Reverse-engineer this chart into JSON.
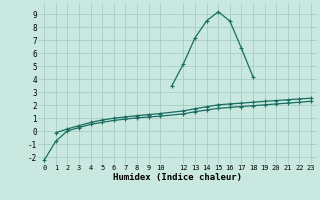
{
  "xlabel": "Humidex (Indice chaleur)",
  "bg_color": "#c8e8e0",
  "grid_color": "#a8ccc4",
  "line_color": "#1a6e60",
  "xlim": [
    -0.5,
    23.5
  ],
  "ylim": [
    -2.5,
    9.8
  ],
  "xticks": [
    0,
    1,
    2,
    3,
    4,
    5,
    6,
    7,
    8,
    9,
    10,
    12,
    13,
    14,
    15,
    16,
    17,
    18,
    19,
    20,
    21,
    22,
    23
  ],
  "yticks": [
    -2,
    -1,
    0,
    1,
    2,
    3,
    4,
    5,
    6,
    7,
    8,
    9
  ],
  "line1_x": [
    0,
    1,
    2,
    3,
    4,
    5,
    6,
    7,
    8,
    9,
    10,
    12,
    13,
    14,
    15,
    16,
    17,
    18,
    19,
    20,
    21,
    22,
    23
  ],
  "line1_y": [
    -2.2,
    -0.75,
    0.05,
    0.3,
    0.55,
    0.7,
    0.85,
    0.95,
    1.05,
    1.12,
    1.18,
    1.35,
    1.52,
    1.65,
    1.78,
    1.85,
    1.92,
    1.98,
    2.05,
    2.12,
    2.18,
    2.25,
    2.32
  ],
  "line2_x": [
    1,
    2,
    3,
    4,
    5,
    6,
    7,
    8,
    9,
    10,
    12,
    13,
    14,
    15,
    16,
    17,
    18,
    19,
    20,
    21,
    22,
    23
  ],
  "line2_y": [
    -0.1,
    0.2,
    0.45,
    0.7,
    0.88,
    1.02,
    1.12,
    1.22,
    1.3,
    1.38,
    1.58,
    1.75,
    1.9,
    2.05,
    2.12,
    2.18,
    2.25,
    2.32,
    2.38,
    2.44,
    2.5,
    2.56
  ],
  "line3_x": [
    11,
    12,
    13,
    14,
    15,
    16,
    17,
    18
  ],
  "line3_y": [
    3.5,
    5.2,
    7.2,
    8.5,
    9.2,
    8.5,
    6.4,
    4.2
  ],
  "marker_size": 3.5,
  "lw": 0.9
}
